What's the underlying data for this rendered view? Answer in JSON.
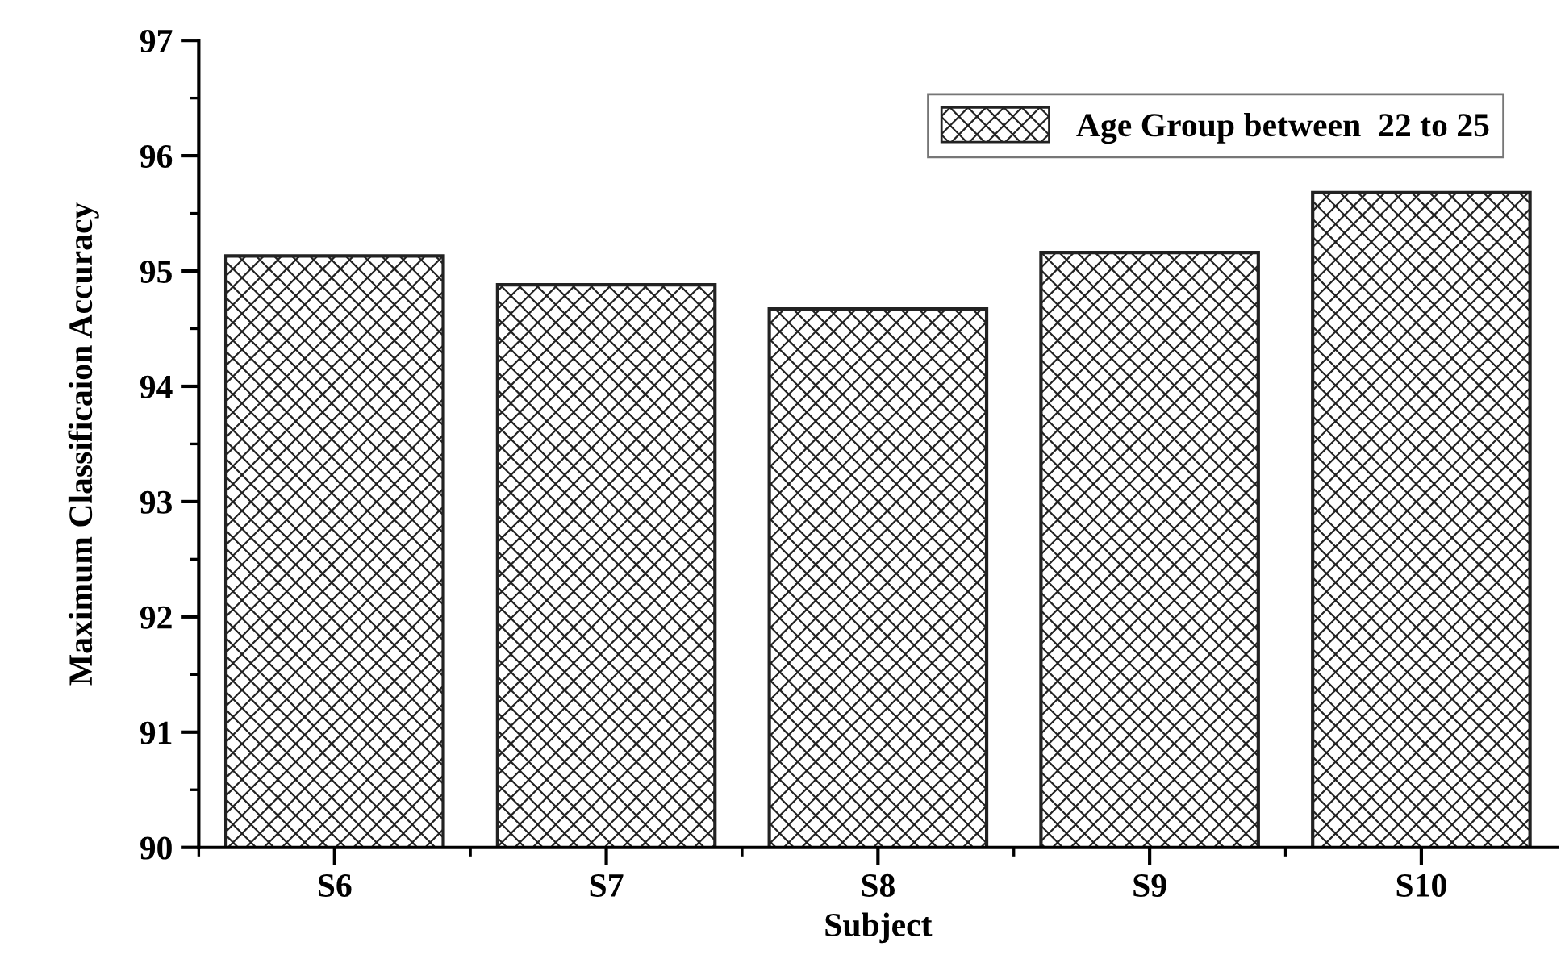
{
  "chart_data": {
    "type": "bar",
    "xlabel": "Subject",
    "ylabel": "Maximum Classificaion Accuracy",
    "categories": [
      "S6",
      "S7",
      "S8",
      "S9",
      "S10"
    ],
    "series": [
      {
        "name": "Age Group between  22 to 25",
        "color": "#222222",
        "values": [
          95.13,
          94.88,
          94.67,
          95.16,
          95.68
        ]
      }
    ],
    "ylim": [
      90,
      97
    ],
    "yticks": [
      90,
      91,
      92,
      93,
      94,
      95,
      96,
      97
    ],
    "grid": false,
    "legend": "top right"
  }
}
